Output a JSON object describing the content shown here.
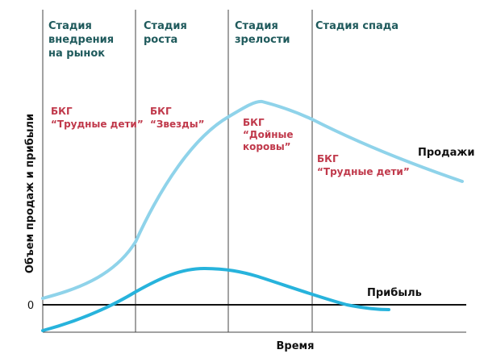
{
  "chart_data": {
    "type": "line",
    "title": "",
    "xlabel": "Время",
    "ylabel": "Объем продаж и прибыли",
    "zero_label": "0",
    "grid": false,
    "colors": {
      "sales": "#8fd3ea",
      "profit": "#27b3dc",
      "stage_line": "#444444",
      "zero_line": "#111111"
    },
    "stages": [
      {
        "name": [
          "Стадия",
          "внедрения",
          "на рынок"
        ],
        "bcg": [
          "БКГ",
          "“Трудные дети”"
        ]
      },
      {
        "name": [
          "Стадия",
          "роста"
        ],
        "bcg": [
          "БКГ",
          "“Звезды”"
        ]
      },
      {
        "name": [
          "Стадия",
          "зрелости"
        ],
        "bcg": [
          "БКГ",
          "“Дойные",
          "коровы”"
        ]
      },
      {
        "name": [
          "Стадия спада"
        ],
        "bcg": [
          "БКГ",
          "“Трудные дети”"
        ]
      }
    ],
    "series": [
      {
        "name": "Продажи",
        "key": "sales"
      },
      {
        "name": "Прибыль",
        "key": "profit"
      }
    ]
  }
}
